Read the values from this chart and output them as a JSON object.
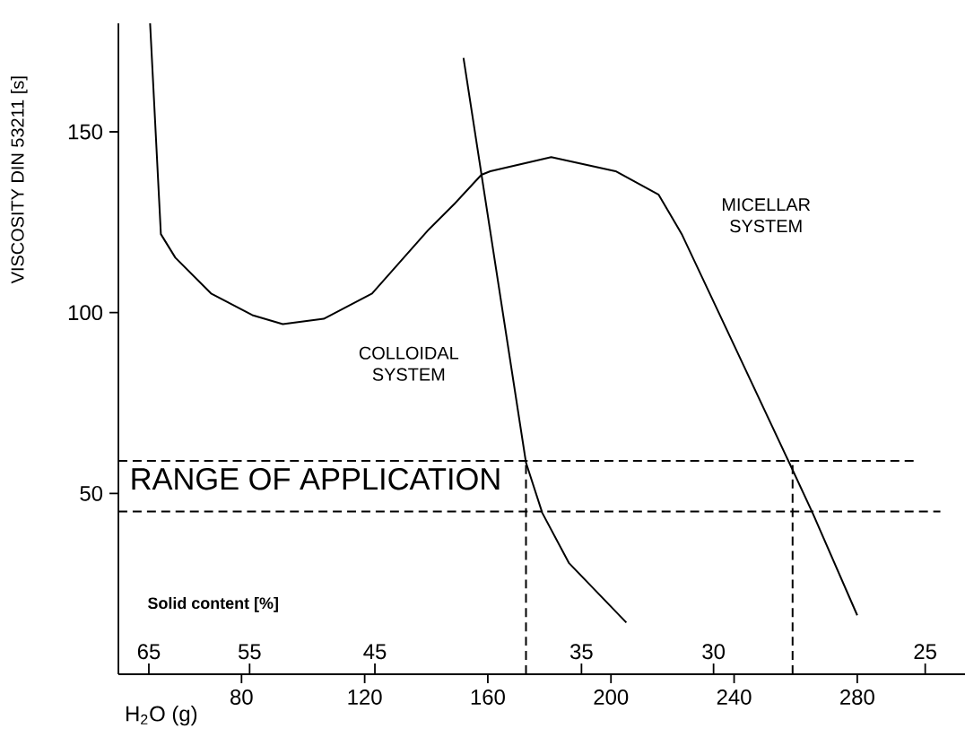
{
  "chart_data": {
    "type": "line",
    "xlabel": "H$_{2}$O (g)",
    "ylabel": "VISCOSITY DIN 53211 [s]",
    "xlim": [
      40,
      315
    ],
    "ylim": [
      0,
      180
    ],
    "xticks": [
      80,
      120,
      160,
      200,
      240,
      280
    ],
    "yticks": [
      50,
      100,
      150
    ],
    "series": [
      {
        "color": "#000000",
        "line_style": "solid",
        "x": [
          50.3,
          53.8,
          58.5,
          70.1,
          83.5,
          93.4,
          106.7,
          122.4,
          140.5,
          149.2,
          157.9,
          160.8,
          180.6,
          201.5,
          215.5,
          223,
          238.7,
          257.9,
          265.5,
          280
        ],
        "values": [
          180,
          121.7,
          115.2,
          105.3,
          99.3,
          96.8,
          98.3,
          105.3,
          122.7,
          130.1,
          138.1,
          139.1,
          143,
          139.1,
          132.6,
          121.7,
          93.3,
          58.5,
          44.6,
          16.3
        ]
      },
      {
        "color": "#000000",
        "line_style": "solid",
        "x": [
          152.1,
          172.4,
          177.7,
          186.4,
          205
        ],
        "values": [
          170.4,
          58.5,
          44.6,
          30.7,
          14.3
        ]
      },
      {
        "color": "#000000",
        "line_style": "dashed",
        "x": [
          40,
          299
        ],
        "values": [
          59,
          59
        ]
      },
      {
        "color": "#000000",
        "line_style": "dashed",
        "x": [
          40,
          307
        ],
        "values": [
          45,
          45
        ]
      },
      {
        "color": "#000000",
        "line_style": "dashed",
        "x": [
          172.4,
          172.4
        ],
        "values": [
          0,
          59
        ]
      },
      {
        "color": "#000000",
        "line_style": "dashed",
        "x": [
          259,
          259
        ],
        "values": [
          0,
          59
        ]
      }
    ],
    "annotations": [
      "RANGE OF APPLICATION",
      "COLLOIDAL SYSTEM",
      "MICELLAR SYSTEM",
      "Solid content [%]",
      "65",
      "55",
      "45",
      "35",
      "30",
      "25"
    ]
  }
}
